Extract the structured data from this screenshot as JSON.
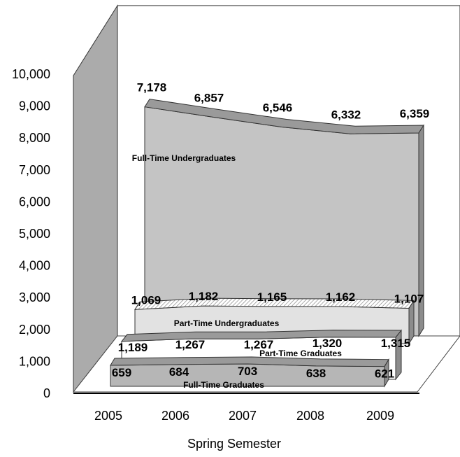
{
  "chart_data": {
    "type": "area",
    "view": "3d",
    "categories": [
      "2005",
      "2006",
      "2007",
      "2008",
      "2009"
    ],
    "xlabel": "Spring Semester",
    "ylabel": "",
    "ylim": [
      0,
      10000
    ],
    "yticks": [
      "0",
      "1,000",
      "2,000",
      "3,000",
      "4,000",
      "5,000",
      "6,000",
      "7,000",
      "8,000",
      "9,000",
      "10,000"
    ],
    "grid": false,
    "legend": "none",
    "series": [
      {
        "name": "Full-Time Undergraduates",
        "values": [
          7178,
          6857,
          6546,
          6332,
          6359
        ],
        "labels": [
          "7,178",
          "6,857",
          "6,546",
          "6,332",
          "6,359"
        ]
      },
      {
        "name": "Part-Time Undergraduates",
        "values": [
          1069,
          1182,
          1165,
          1162,
          1107
        ],
        "labels": [
          "1,069",
          "1,182",
          "1,165",
          "1,162",
          "1,107"
        ]
      },
      {
        "name": "Part-Time Graduates",
        "values": [
          1189,
          1267,
          1267,
          1320,
          1315
        ],
        "labels": [
          "1,189",
          "1,267",
          "1,267",
          "1,320",
          "1,315"
        ]
      },
      {
        "name": "Full-Time Graduates",
        "values": [
          659,
          684,
          703,
          638,
          621
        ],
        "labels": [
          "659",
          "684",
          "703",
          "638",
          "621"
        ]
      }
    ]
  },
  "colors": {
    "wall": "#ababab",
    "fulltime_undergrad": "#c4c4c4",
    "parttime_undergrad": "#e2e2e2",
    "parttime_grad": "#ffffff",
    "fulltime_grad": "#b6b6b6"
  }
}
